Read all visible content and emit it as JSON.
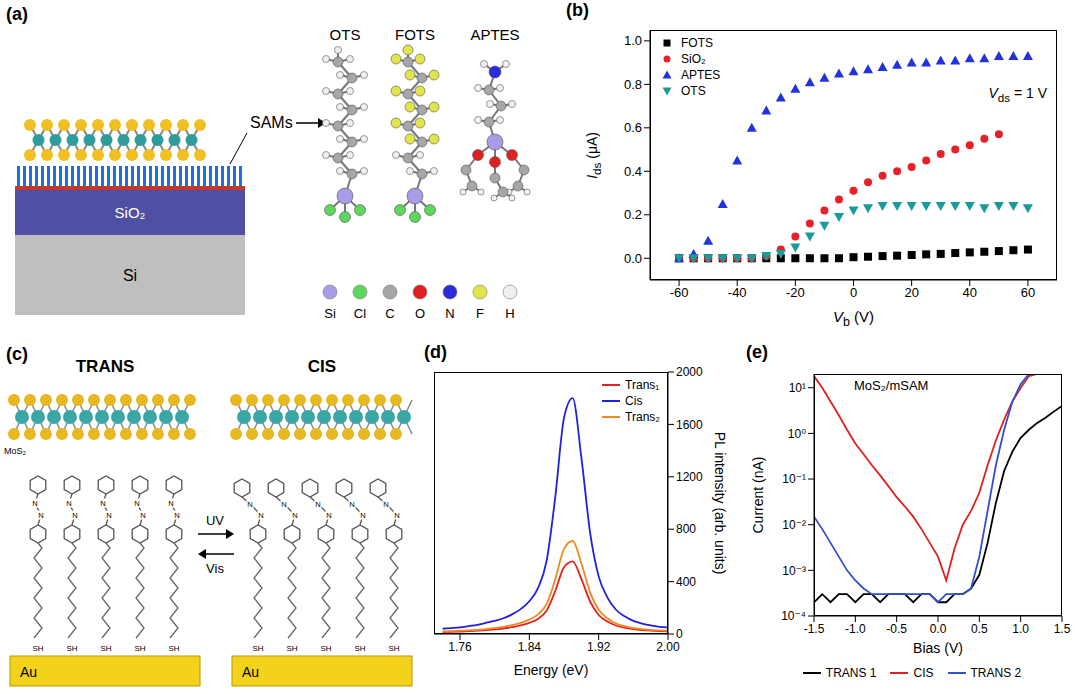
{
  "diagrams": {
    "a": {
      "panel": "(a)",
      "sams_label": "SAMs",
      "layers": [
        "SiO₂",
        "Si"
      ],
      "molecules": [
        "OTS",
        "FOTS",
        "APTES"
      ],
      "elements": [
        {
          "symbol": "Si",
          "color": "#a99be6"
        },
        {
          "symbol": "Cl",
          "color": "#5ed65e"
        },
        {
          "symbol": "C",
          "color": "#a6a6a6"
        },
        {
          "symbol": "O",
          "color": "#e02020"
        },
        {
          "symbol": "N",
          "color": "#2b2bd9"
        },
        {
          "symbol": "F",
          "color": "#e3e34d"
        },
        {
          "symbol": "H",
          "color": "#f0f0f0"
        }
      ]
    },
    "c": {
      "panel": "(c)",
      "states": [
        "TRANS",
        "CIS"
      ],
      "forward": "UV",
      "backward": "Vis",
      "layer": "MoS₂",
      "substrate": "Au",
      "chain_end": "SH",
      "azo_atom": "N"
    }
  },
  "chart_data": [
    {
      "panel": "(b)",
      "type": "scatter",
      "x_label": {
        "base": "V",
        "sub": "b",
        "tail": " (V)"
      },
      "y_label": {
        "base": "I",
        "sub": "ds",
        "tail": " (μA)"
      },
      "annotation": {
        "base": "V",
        "sub": "ds",
        "tail": " = 1 V"
      },
      "x": [
        -60,
        -55,
        -50,
        -45,
        -40,
        -35,
        -30,
        -25,
        -20,
        -15,
        -10,
        -5,
        0,
        5,
        10,
        15,
        20,
        25,
        30,
        35,
        40,
        45,
        50,
        55,
        60
      ],
      "series": [
        {
          "name": "FOTS",
          "color": "#000000",
          "marker": "square",
          "values": [
            0,
            0,
            0,
            0,
            0,
            0,
            0,
            0,
            0,
            0,
            0,
            0,
            0.005,
            0.007,
            0.01,
            0.012,
            0.015,
            0.018,
            0.02,
            0.024,
            0.027,
            0.03,
            0.033,
            0.037,
            0.04
          ]
        },
        {
          "name": "SiO₂",
          "color": "#e8202a",
          "marker": "circle",
          "values": [
            0,
            0,
            0,
            0,
            0,
            0,
            0.01,
            0.04,
            0.1,
            0.16,
            0.22,
            0.27,
            0.31,
            0.35,
            0.38,
            0.4,
            0.42,
            0.45,
            0.48,
            0.5,
            0.52,
            0.55,
            0.57,
            null,
            null
          ]
        },
        {
          "name": "APTES",
          "color": "#2233dd",
          "marker": "triangle",
          "values": [
            0,
            0.02,
            0.08,
            0.25,
            0.45,
            0.6,
            0.68,
            0.74,
            0.78,
            0.81,
            0.83,
            0.85,
            0.86,
            0.87,
            0.88,
            0.89,
            0.9,
            0.9,
            0.91,
            0.91,
            0.92,
            0.92,
            0.93,
            0.93,
            0.93
          ]
        },
        {
          "name": "OTS",
          "color": "#1a9a9a",
          "marker": "triangle-down",
          "values": [
            0,
            0,
            0,
            0,
            0,
            0,
            0.01,
            0.02,
            0.05,
            0.1,
            0.15,
            0.19,
            0.22,
            0.23,
            0.24,
            0.24,
            0.24,
            0.24,
            0.24,
            0.24,
            0.24,
            0.23,
            0.24,
            0.24,
            0.23
          ]
        }
      ],
      "xlim": [
        -70,
        70
      ],
      "xticks": [
        -60,
        -40,
        -20,
        0,
        20,
        40,
        60
      ],
      "ylim": [
        -0.1,
        1.05
      ],
      "yticks": [
        {
          "value": 0,
          "label": "0.0"
        },
        0.2,
        0.4,
        0.6,
        0.8,
        {
          "value": 1,
          "label": "1.0"
        }
      ],
      "legend": "top-left"
    },
    {
      "panel": "(d)",
      "type": "line",
      "x_label": "Energy (eV)",
      "y_label": "PL intensity (arb. units)",
      "x": [
        1.74,
        1.75,
        1.76,
        1.77,
        1.78,
        1.79,
        1.8,
        1.81,
        1.82,
        1.83,
        1.84,
        1.85,
        1.86,
        1.87,
        1.88,
        1.89,
        1.9,
        1.91,
        1.92,
        1.93,
        1.94,
        1.95,
        1.96,
        1.97,
        1.98,
        1.99,
        2.0
      ],
      "series": [
        {
          "name": "Trans₁",
          "color": "#e82020",
          "values": [
            15,
            17,
            19,
            22,
            25,
            30,
            35,
            42,
            52,
            65,
            85,
            115,
            180,
            330,
            510,
            555,
            420,
            250,
            145,
            95,
            65,
            48,
            37,
            30,
            25,
            22,
            20
          ]
        },
        {
          "name": "Cis",
          "color": "#2020e0",
          "values": [
            40,
            45,
            50,
            60,
            70,
            85,
            100,
            120,
            150,
            190,
            250,
            350,
            560,
            1050,
            1650,
            1800,
            1350,
            780,
            440,
            280,
            185,
            135,
            100,
            80,
            65,
            55,
            50
          ]
        },
        {
          "name": "Trans₂",
          "color": "#f08a20",
          "values": [
            20,
            22,
            25,
            28,
            32,
            38,
            45,
            55,
            68,
            85,
            110,
            150,
            230,
            420,
            650,
            710,
            540,
            320,
            185,
            120,
            80,
            60,
            45,
            38,
            32,
            28,
            25
          ]
        }
      ],
      "xlim": [
        1.73,
        2.0
      ],
      "xticks": [
        1.76,
        1.84,
        1.92,
        {
          "value": 2,
          "label": "2.00"
        }
      ],
      "ylim": [
        0,
        2000
      ],
      "yticks": [
        0,
        400,
        800,
        1200,
        1600,
        2000
      ],
      "legend": "top-right"
    },
    {
      "panel": "(e)",
      "type": "line",
      "title": "MoS₂/mSAM",
      "x_label": "Bias (V)",
      "y_label": "Current (nA)",
      "log": "y",
      "x": [
        -1.5,
        -1.4,
        -1.3,
        -1.2,
        -1.1,
        -1.0,
        -0.9,
        -0.8,
        -0.7,
        -0.6,
        -0.5,
        -0.4,
        -0.3,
        -0.2,
        -0.1,
        0.0,
        0.1,
        0.2,
        0.3,
        0.4,
        0.5,
        0.6,
        0.7,
        0.8,
        0.9,
        1.0,
        1.1,
        1.2,
        1.3,
        1.4,
        1.5
      ],
      "series": [
        {
          "name": "TRANS 1",
          "color": "#000000",
          "values": [
            0.0002,
            0.0003,
            0.0002,
            0.0003,
            0.0003,
            0.0002,
            0.0003,
            0.0003,
            0.0002,
            0.0003,
            0.0003,
            0.0003,
            0.0002,
            0.0003,
            0.0003,
            0.0002,
            0.0002,
            0.0003,
            0.0003,
            0.0004,
            0.0008,
            0.004,
            0.03,
            0.15,
            0.4,
            0.8,
            1.2,
            1.7,
            2.2,
            3,
            4
          ]
        },
        {
          "name": "CIS",
          "color": "#e02020",
          "values": [
            18,
            10,
            5,
            2.5,
            1.2,
            0.6,
            0.35,
            0.2,
            0.12,
            0.07,
            0.04,
            0.025,
            0.015,
            0.008,
            0.004,
            0.002,
            0.0006,
            0.003,
            0.01,
            0.02,
            0.05,
            0.2,
            0.7,
            2,
            5,
            10,
            18,
            20,
            20,
            20,
            20
          ]
        },
        {
          "name": "TRANS 2",
          "color": "#3050d0",
          "values": [
            0.015,
            0.008,
            0.004,
            0.002,
            0.001,
            0.0006,
            0.0004,
            0.0003,
            0.0003,
            0.0003,
            0.0003,
            0.0003,
            0.0003,
            0.0003,
            0.0003,
            0.0002,
            0.0003,
            0.0003,
            0.0003,
            0.0004,
            0.002,
            0.02,
            0.2,
            1.2,
            5,
            12,
            20,
            20,
            20,
            20,
            20
          ]
        }
      ],
      "xlim": [
        -1.5,
        1.5
      ],
      "xticks": [
        -1.5,
        {
          "value": -1,
          "label": "-1.0"
        },
        -0.5,
        {
          "value": 0,
          "label": "0.0"
        },
        0.5,
        {
          "value": 1,
          "label": "1.0"
        },
        1.5
      ],
      "ylim": [
        0.0001,
        20
      ],
      "yticks": [
        {
          "value": 0.0001,
          "label": "10⁻⁴"
        },
        {
          "value": 0.001,
          "label": "10⁻³"
        },
        {
          "value": 0.01,
          "label": "10⁻²"
        },
        {
          "value": 0.1,
          "label": "10⁻¹"
        },
        {
          "value": 1,
          "label": "10⁰"
        },
        {
          "value": 10,
          "label": "10¹"
        }
      ],
      "legend": "bottom"
    }
  ]
}
